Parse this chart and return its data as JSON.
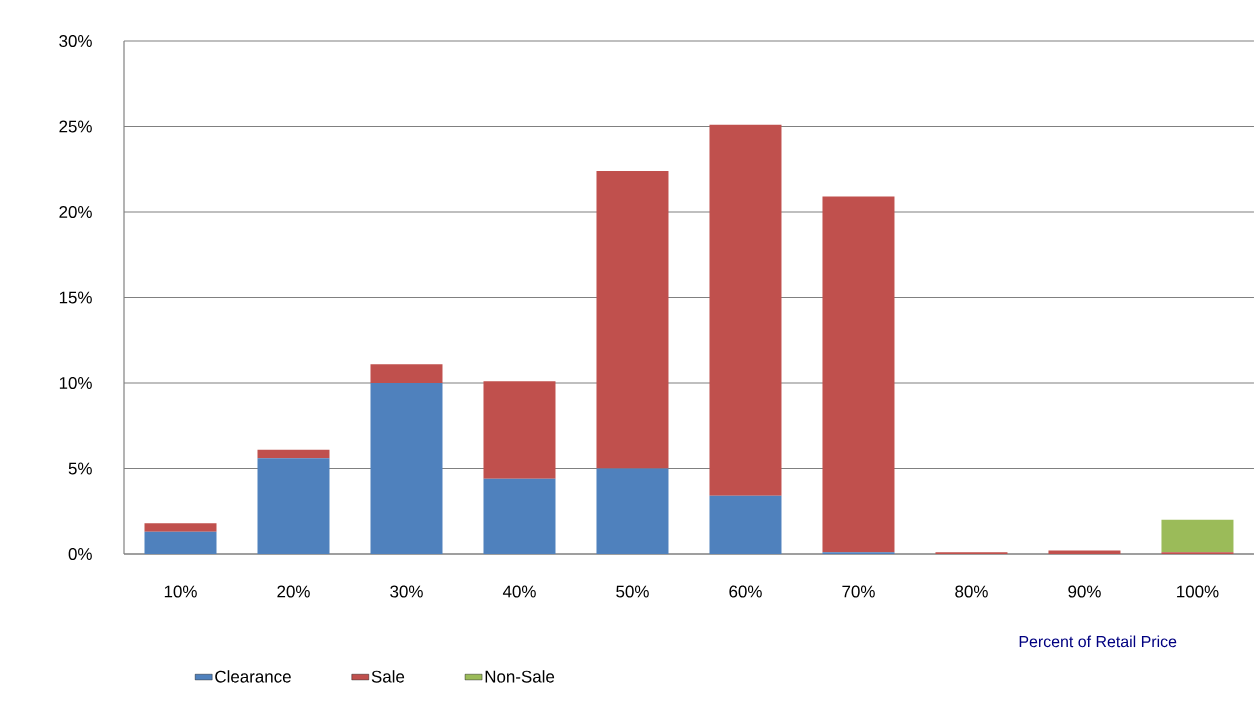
{
  "chart_data": {
    "type": "bar",
    "stacked": true,
    "xlabel": "Percent of Retail Price",
    "categories": [
      "10%",
      "20%",
      "30%",
      "40%",
      "50%",
      "60%",
      "70%",
      "80%",
      "90%",
      "100%"
    ],
    "series": [
      {
        "name": "Clearance",
        "color": "#4f81bd",
        "values": [
          1.3,
          5.6,
          10.0,
          4.4,
          5.0,
          3.4,
          0.1,
          0,
          0,
          0
        ]
      },
      {
        "name": "Sale",
        "color": "#c0504d",
        "values": [
          0.5,
          0.5,
          1.1,
          5.7,
          17.4,
          21.7,
          20.8,
          0.1,
          0.2,
          0.1
        ]
      },
      {
        "name": "Non-Sale",
        "color": "#9bbb59",
        "values": [
          0,
          0,
          0,
          0,
          0,
          0,
          0,
          0,
          0,
          1.9
        ]
      }
    ],
    "ylim": [
      0,
      30
    ],
    "yticks": [
      {
        "value": 0,
        "label": "0%"
      },
      {
        "value": 5,
        "label": "5%"
      },
      {
        "value": 10,
        "label": "10%"
      },
      {
        "value": 15,
        "label": "15%"
      },
      {
        "value": 20,
        "label": "20%"
      },
      {
        "value": 25,
        "label": "25%"
      },
      {
        "value": 30,
        "label": "30%"
      }
    ],
    "grid": "y",
    "legend": "bottom"
  }
}
